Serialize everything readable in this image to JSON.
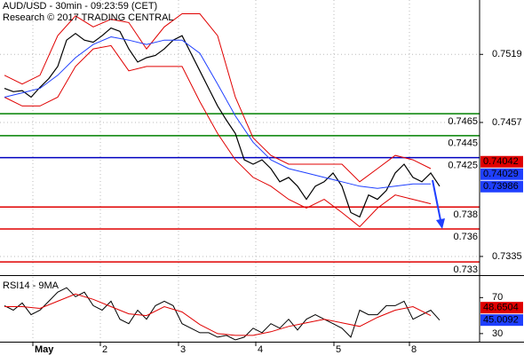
{
  "header": {
    "title": "AUD/USD - 30min - 09:23:59 (CET)",
    "subtitle": "Research © 2017 TRADING CENTRAL"
  },
  "chart_data": [
    {
      "type": "line",
      "xlim": [
        -0.5,
        53.5
      ],
      "ylim": [
        0.7318,
        0.75685
      ],
      "yticks": [
        0.7335,
        0.7457,
        0.7519
      ],
      "xticks": [
        {
          "value": 3.2,
          "label": "May"
        },
        {
          "value": 10.8,
          "label": "2"
        },
        {
          "value": 19.6,
          "label": "3"
        },
        {
          "value": 28.3,
          "label": "4"
        },
        {
          "value": 37.1,
          "label": "5"
        },
        {
          "value": 45.6,
          "label": "8"
        }
      ],
      "grid": true,
      "series": [
        {
          "color": "#000000",
          "width": 1.2,
          "x": [
            0,
            1,
            2,
            3,
            4,
            5,
            6,
            7,
            8,
            9,
            10,
            11,
            12,
            13,
            14,
            15,
            16,
            17,
            18,
            19,
            20,
            21,
            22,
            23,
            24,
            25,
            26,
            27,
            28,
            29,
            30,
            31,
            32,
            33,
            34,
            35,
            36,
            37,
            38,
            39,
            40,
            41,
            42,
            43,
            44,
            45,
            46,
            47,
            48,
            49
          ],
          "values": [
            0.7488,
            0.7485,
            0.7486,
            0.748,
            0.7489,
            0.7497,
            0.7508,
            0.7532,
            0.7538,
            0.7532,
            0.753,
            0.7536,
            0.7543,
            0.754,
            0.7524,
            0.7512,
            0.7516,
            0.7518,
            0.7524,
            0.7532,
            0.7536,
            0.752,
            0.7504,
            0.7488,
            0.7472,
            0.7459,
            0.7447,
            0.7423,
            0.7419,
            0.7423,
            0.7415,
            0.7403,
            0.7407,
            0.7399,
            0.7387,
            0.7399,
            0.7403,
            0.7411,
            0.7399,
            0.7375,
            0.7371,
            0.7391,
            0.7387,
            0.7395,
            0.7411,
            0.7419,
            0.7407,
            0.7403,
            0.7411,
            0.7399
          ]
        },
        {
          "color": "#e00000",
          "width": 1,
          "x": [
            0,
            2,
            4,
            6,
            8,
            10,
            12,
            14,
            16,
            18,
            20,
            22,
            24,
            26,
            28,
            30,
            32,
            34,
            36,
            38,
            40,
            42,
            44,
            46,
            48
          ],
          "values": [
            0.75,
            0.7492,
            0.75,
            0.7536,
            0.7554,
            0.7544,
            0.7551,
            0.7548,
            0.7524,
            0.7544,
            0.7556,
            0.7556,
            0.7536,
            0.748,
            0.7443,
            0.7427,
            0.7419,
            0.7419,
            0.7419,
            0.7419,
            0.7403,
            0.7415,
            0.7427,
            0.7423,
            0.7415
          ]
        },
        {
          "color": "#e00000",
          "width": 1,
          "x": [
            0,
            2,
            4,
            6,
            8,
            10,
            12,
            14,
            16,
            18,
            20,
            22,
            24,
            26,
            28,
            30,
            32,
            34,
            36,
            38,
            40,
            42,
            44,
            46,
            48
          ],
          "values": [
            0.748,
            0.7472,
            0.7472,
            0.748,
            0.7508,
            0.7524,
            0.7527,
            0.7504,
            0.7508,
            0.7508,
            0.7508,
            0.7476,
            0.7447,
            0.7423,
            0.7407,
            0.7399,
            0.7387,
            0.7379,
            0.7387,
            0.7375,
            0.7362,
            0.7379,
            0.7391,
            0.7387,
            0.7383
          ]
        },
        {
          "color": "#1f3fff",
          "width": 1,
          "x": [
            0,
            2,
            4,
            6,
            8,
            10,
            12,
            14,
            16,
            18,
            20,
            22,
            24,
            26,
            28,
            30,
            32,
            34,
            36,
            38,
            40,
            42,
            44,
            46,
            48
          ],
          "values": [
            0.748,
            0.7484,
            0.7488,
            0.75,
            0.7516,
            0.7528,
            0.7535,
            0.7532,
            0.7528,
            0.7532,
            0.7532,
            0.752,
            0.7492,
            0.7463,
            0.7439,
            0.7423,
            0.7415,
            0.7411,
            0.7407,
            0.7403,
            0.7399,
            0.7397,
            0.7399,
            0.7401,
            0.7401
          ]
        }
      ],
      "levels": [
        {
          "value": 0.7465,
          "color": "#008000"
        },
        {
          "value": 0.7445,
          "color": "#008000"
        },
        {
          "value": 0.7425,
          "color": "#0000c0"
        },
        {
          "value": 0.738,
          "color": "#e00000"
        },
        {
          "value": 0.736,
          "color": "#e00000"
        },
        {
          "value": 0.733,
          "color": "#e00000"
        }
      ],
      "price_labels": [
        {
          "value": 0.74042,
          "color": "#e00000"
        },
        {
          "value": 0.74029,
          "color": "#1f3fff"
        },
        {
          "value": 0.73986,
          "color": "#1f3fff"
        }
      ]
    },
    {
      "type": "line",
      "title": "RSI14 - 9MA",
      "xlim": [
        -0.5,
        53.5
      ],
      "ylim": [
        21,
        93
      ],
      "yticks": [
        30,
        70
      ],
      "series": [
        {
          "color": "#000000",
          "width": 1,
          "x": [
            0,
            1,
            2,
            3,
            4,
            5,
            6,
            7,
            8,
            9,
            10,
            11,
            12,
            13,
            14,
            15,
            16,
            17,
            18,
            19,
            20,
            21,
            22,
            23,
            24,
            25,
            26,
            27,
            28,
            29,
            30,
            31,
            32,
            33,
            34,
            35,
            36,
            37,
            38,
            39,
            40,
            41,
            42,
            43,
            44,
            45,
            46,
            47,
            48,
            49
          ],
          "values": [
            61,
            56,
            64,
            51,
            56,
            66,
            76,
            81,
            71,
            76,
            61,
            56,
            66,
            46,
            41,
            56,
            46,
            61,
            66,
            61,
            41,
            36,
            31,
            31,
            26,
            28,
            23,
            26,
            36,
            31,
            41,
            36,
            46,
            34,
            46,
            51,
            46,
            41,
            36,
            26,
            56,
            51,
            51,
            61,
            61,
            66,
            46,
            51,
            56,
            45
          ]
        },
        {
          "color": "#e00000",
          "width": 1,
          "x": [
            0,
            2,
            4,
            6,
            8,
            10,
            12,
            14,
            16,
            18,
            20,
            22,
            24,
            26,
            28,
            30,
            32,
            34,
            36,
            38,
            40,
            42,
            44,
            46,
            48
          ],
          "values": [
            60,
            60,
            58,
            66,
            74,
            68,
            60,
            52,
            50,
            60,
            54,
            40,
            30,
            28,
            28,
            32,
            38,
            42,
            46,
            42,
            38,
            48,
            56,
            60,
            50
          ]
        }
      ],
      "price_labels": [
        {
          "value": 48.6504,
          "color": "#e00000"
        },
        {
          "value": 45.0092,
          "color": "#1f3fff"
        }
      ]
    }
  ]
}
